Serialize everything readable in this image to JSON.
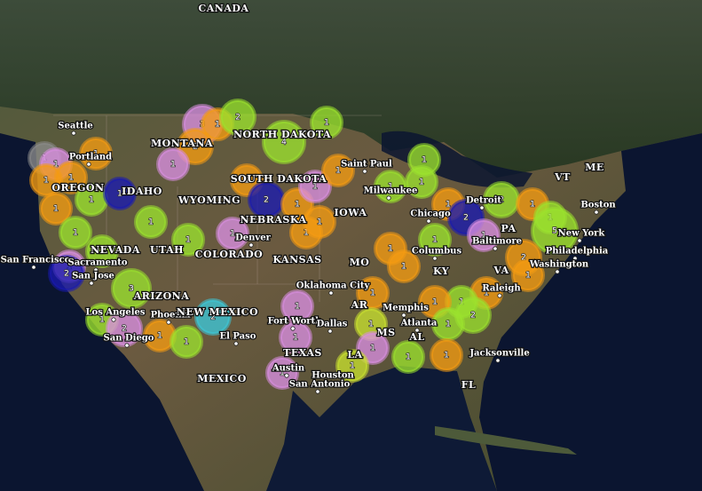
{
  "map": {
    "labels": [
      "CANADA",
      "Seattle",
      "Portland",
      "OREGON",
      "IDAHO",
      "MONTANA",
      "NORTH DAKOTA",
      "SOUTH DAKOTA",
      "Saint Paul",
      "WYOMING",
      "NEBRASKA",
      "IOWA",
      "Milwaukee",
      "Chicago",
      "Detroit",
      "PA",
      "VT",
      "ME",
      "Boston",
      "New York",
      "Philadelphia",
      "Baltimore",
      "Washington",
      "NEVADA",
      "UTAH",
      "Denver",
      "COLORADO",
      "KANSAS",
      "MO",
      "San Francisco",
      "Sacramento",
      "San Jose",
      "ARIZONA",
      "Oklahoma City",
      "KY",
      "Columbus",
      "VA",
      "Raleigh",
      "AR",
      "Memphis",
      "Los Angeles",
      "San Diego",
      "Phoenix",
      "NEW MEXICO",
      "El Paso",
      "Fort Worth",
      "Dallas",
      "Atlanta",
      "MS",
      "AL",
      "TEXAS",
      "Jacksonville",
      "LA",
      "Houston",
      "MEXICO",
      "Austin",
      "San Antonio",
      "FL"
    ],
    "clusters": [
      {
        "count": 1,
        "color": "#8a8a8a"
      },
      {
        "count": 1,
        "color": "#d98ee0"
      },
      {
        "count": 1,
        "color": "#f49b12"
      },
      {
        "count": 1,
        "color": "#f49b12"
      },
      {
        "count": 1,
        "color": "#f49b12"
      },
      {
        "count": 1,
        "color": "#9be22e"
      },
      {
        "count": 1,
        "color": "#f49b12"
      },
      {
        "count": 1,
        "color": "#1a1ab0"
      },
      {
        "count": 1,
        "color": "#9be22e"
      },
      {
        "count": 1,
        "color": "#9be22e"
      },
      {
        "count": 1,
        "color": "#d98ee0"
      },
      {
        "count": 2,
        "color": "#1a1ab0"
      },
      {
        "count": 3,
        "color": "#9be22e"
      },
      {
        "count": 1,
        "color": "#9be22e"
      },
      {
        "count": 2,
        "color": "#d98ee0"
      },
      {
        "count": 1,
        "color": "#9be22e"
      },
      {
        "count": 1,
        "color": "#9be22e"
      },
      {
        "count": 1,
        "color": "#f49b12"
      },
      {
        "count": 1,
        "color": "#9be22e"
      },
      {
        "count": 2,
        "color": "#3cc8d8"
      },
      {
        "count": 3,
        "color": "#d98ee0"
      },
      {
        "count": 2,
        "color": "#f49b12"
      },
      {
        "count": 1,
        "color": "#d98ee0"
      },
      {
        "count": 1,
        "color": "#f49b12"
      },
      {
        "count": 2,
        "color": "#9be22e"
      },
      {
        "count": 4,
        "color": "#9be22e"
      },
      {
        "count": 1,
        "color": "#9be22e"
      },
      {
        "count": 1,
        "color": "#f49b12"
      },
      {
        "count": 2,
        "color": "#1a1ab0"
      },
      {
        "count": 1,
        "color": "#f49b12"
      },
      {
        "count": 1,
        "color": "#d98ee0"
      },
      {
        "count": 1,
        "color": "#d98ee0"
      },
      {
        "count": 1,
        "color": "#f49b12"
      },
      {
        "count": 1,
        "color": "#f49b12"
      },
      {
        "count": 1,
        "color": "#f49b12"
      },
      {
        "count": 1,
        "color": "#9be22e"
      },
      {
        "count": 1,
        "color": "#9be22e"
      },
      {
        "count": 1,
        "color": "#9be22e"
      },
      {
        "count": 1,
        "color": "#f49b12"
      },
      {
        "count": 2,
        "color": "#1a1ab0"
      },
      {
        "count": 1,
        "color": "#f49b12"
      },
      {
        "count": 1,
        "color": "#f49b12"
      },
      {
        "count": 1,
        "color": "#9be22e"
      },
      {
        "count": 1,
        "color": "#d98ee0"
      },
      {
        "count": 2,
        "color": "#9be22e"
      },
      {
        "count": 1,
        "color": "#f49b12"
      },
      {
        "count": 1,
        "color": "#9be22e"
      },
      {
        "count": 5,
        "color": "#9be22e"
      },
      {
        "count": 2,
        "color": "#f49b12"
      },
      {
        "count": 1,
        "color": "#f49b12"
      },
      {
        "count": 1,
        "color": "#f49b12"
      },
      {
        "count": 1,
        "color": "#9be22e"
      },
      {
        "count": 1,
        "color": "#f49b12"
      },
      {
        "count": 2,
        "color": "#9be22e"
      },
      {
        "count": 1,
        "color": "#9be22e"
      },
      {
        "count": 1,
        "color": "#f49b12"
      },
      {
        "count": 1,
        "color": "#c8e030"
      },
      {
        "count": 1,
        "color": "#d98ee0"
      },
      {
        "count": 1,
        "color": "#9be22e"
      },
      {
        "count": 1,
        "color": "#f49b12"
      },
      {
        "count": 1,
        "color": "#c8e030"
      },
      {
        "count": 1,
        "color": "#d98ee0"
      },
      {
        "count": 1,
        "color": "#d98ee0"
      },
      {
        "count": 1,
        "color": "#d98ee0"
      }
    ]
  }
}
